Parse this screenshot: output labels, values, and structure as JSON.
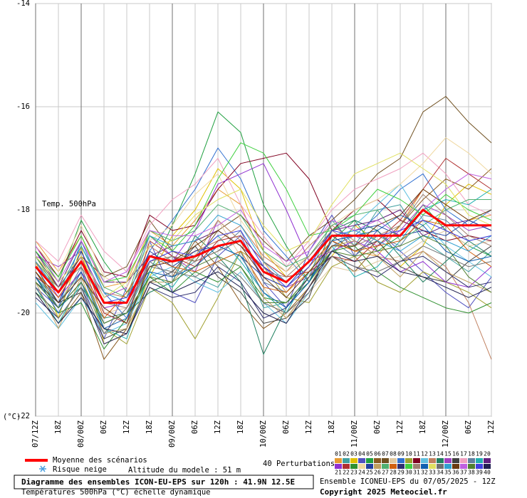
{
  "chart_data": {
    "type": "line",
    "title": "Diagramme des ensembles ICON-EU-EPS sur 120h : 41.9N 12.5E",
    "subtitle": "Températures 500hPa (°C) échelle dynamique",
    "run_label": "Ensemble ICONEU-EPS du 07/05/2025 - 12Z",
    "copyright": "Copyright 2025 Meteociel.fr",
    "variable_label": "Temp. 500hPa",
    "y_unit": "(°C)",
    "snow_label": "Risque neige",
    "altitude_label": "Altitude du modele : 51 m",
    "perturbations_label": "40 Perturbations",
    "categories": [
      "07/12Z",
      "18Z",
      "08/00Z",
      "06Z",
      "12Z",
      "18Z",
      "09/00Z",
      "06Z",
      "12Z",
      "18Z",
      "10/00Z",
      "06Z",
      "12Z",
      "18Z",
      "11/00Z",
      "06Z",
      "12Z",
      "18Z",
      "12/00Z",
      "06Z",
      "12Z"
    ],
    "ylim": [
      -22,
      -14
    ],
    "yticks": [
      -22,
      -20,
      -18,
      -16,
      -14
    ],
    "grid": true,
    "mean": {
      "name": "Moyenne des scénarios",
      "color": "#ff0000",
      "values": [
        -19.1,
        -19.6,
        -19.0,
        -19.8,
        -19.8,
        -18.9,
        -19.0,
        -18.9,
        -18.7,
        -18.6,
        -19.2,
        -19.4,
        -19.0,
        -18.5,
        -18.5,
        -18.5,
        -18.5,
        -18.0,
        -18.3,
        -18.3,
        -18.3
      ]
    },
    "series": [
      {
        "name": "01",
        "color": "#e89a30",
        "values": [
          -18.6,
          -19.2,
          -18.5,
          -19.5,
          -19.4,
          -18.4,
          -18.7,
          -18.2,
          -17.6,
          -17.9,
          -19.0,
          -19.6,
          -19.2,
          -18.6,
          -18.8,
          -18.9,
          -18.3,
          -17.6,
          -17.9,
          -18.2,
          -18.1
        ]
      },
      {
        "name": "02",
        "color": "#40a0a0",
        "values": [
          -19.3,
          -19.8,
          -19.2,
          -20.2,
          -20.0,
          -19.1,
          -18.9,
          -19.3,
          -19.5,
          -18.8,
          -19.9,
          -19.8,
          -19.3,
          -18.2,
          -18.7,
          -18.0,
          -17.9,
          -18.6,
          -18.9,
          -19.2,
          -18.8
        ]
      },
      {
        "name": "03",
        "color": "#e0c000",
        "values": [
          -19.0,
          -20.1,
          -18.7,
          -20.6,
          -20.4,
          -19.3,
          -18.5,
          -18.0,
          -17.2,
          -17.6,
          -18.8,
          -19.3,
          -19.2,
          -18.9,
          -18.3,
          -18.6,
          -19.1,
          -18.7,
          -17.9,
          -17.5,
          -17.7
        ]
      },
      {
        "name": "04",
        "color": "#5050c0",
        "values": [
          -19.5,
          -19.9,
          -19.4,
          -20.5,
          -19.5,
          -18.6,
          -19.6,
          -19.8,
          -18.9,
          -18.5,
          -19.4,
          -19.9,
          -18.8,
          -18.1,
          -18.9,
          -18.4,
          -18.8,
          -19.2,
          -19.6,
          -19.9,
          -19.3
        ]
      },
      {
        "name": "05",
        "color": "#20a040",
        "values": [
          -18.8,
          -19.4,
          -18.2,
          -19.0,
          -19.6,
          -19.2,
          -18.3,
          -17.3,
          -16.1,
          -16.5,
          -17.9,
          -18.7,
          -19.4,
          -18.6,
          -18.2,
          -18.8,
          -18.5,
          -17.9,
          -18.4,
          -18.7,
          -18.9
        ]
      },
      {
        "name": "06",
        "color": "#8a5a20",
        "values": [
          -19.6,
          -20.2,
          -19.6,
          -20.9,
          -20.3,
          -19.0,
          -19.3,
          -18.6,
          -19.1,
          -19.8,
          -20.3,
          -20.0,
          -19.5,
          -18.9,
          -19.2,
          -18.7,
          -18.3,
          -17.8,
          -17.4,
          -17.6,
          -17.2
        ]
      },
      {
        "name": "07",
        "color": "#705020",
        "values": [
          -18.9,
          -19.5,
          -18.9,
          -19.3,
          -19.1,
          -18.2,
          -18.8,
          -19.0,
          -18.4,
          -18.1,
          -18.6,
          -19.0,
          -18.5,
          -18.2,
          -17.8,
          -17.3,
          -17.0,
          -16.1,
          -15.8,
          -16.3,
          -16.7
        ]
      },
      {
        "name": "08",
        "color": "#e0c8a0",
        "values": [
          -19.2,
          -19.7,
          -19.3,
          -20.0,
          -19.9,
          -19.4,
          -19.2,
          -18.9,
          -18.2,
          -18.9,
          -19.5,
          -20.1,
          -19.6,
          -19.1,
          -19.2,
          -19.0,
          -18.9,
          -18.6,
          -18.4,
          -18.7,
          -18.6
        ]
      },
      {
        "name": "09",
        "color": "#3070d0",
        "values": [
          -19.4,
          -19.9,
          -18.6,
          -19.6,
          -20.1,
          -18.8,
          -18.2,
          -17.6,
          -16.8,
          -17.4,
          -18.4,
          -18.9,
          -19.4,
          -18.7,
          -18.5,
          -18.1,
          -17.6,
          -17.3,
          -18.0,
          -18.3,
          -18.0
        ]
      },
      {
        "name": "10",
        "color": "#a0a030",
        "values": [
          -19.0,
          -19.5,
          -19.1,
          -20.3,
          -20.6,
          -19.5,
          -19.8,
          -20.5,
          -19.7,
          -18.8,
          -19.1,
          -19.7,
          -19.8,
          -19.1,
          -18.9,
          -19.4,
          -19.6,
          -19.2,
          -19.4,
          -19.6,
          -19.9
        ]
      },
      {
        "name": "11",
        "color": "#800020",
        "values": [
          -18.7,
          -19.3,
          -18.4,
          -19.2,
          -19.3,
          -18.1,
          -18.4,
          -18.3,
          -17.6,
          -17.1,
          -17.0,
          -16.9,
          -17.4,
          -18.4,
          -18.0,
          -17.8,
          -18.2,
          -18.4,
          -18.6,
          -18.5,
          -18.6
        ]
      },
      {
        "name": "12",
        "color": "#60c0e0",
        "values": [
          -19.8,
          -20.3,
          -19.7,
          -20.4,
          -20.2,
          -19.3,
          -19.1,
          -19.4,
          -19.6,
          -19.2,
          -19.8,
          -20.2,
          -19.6,
          -18.8,
          -18.3,
          -17.9,
          -17.5,
          -18.2,
          -18.7,
          -19.0,
          -19.3
        ]
      },
      {
        "name": "13",
        "color": "#c08060",
        "values": [
          -19.1,
          -19.6,
          -19.0,
          -19.6,
          -19.7,
          -18.7,
          -19.0,
          -18.8,
          -18.6,
          -18.3,
          -18.9,
          -19.2,
          -18.7,
          -18.3,
          -18.6,
          -18.9,
          -19.0,
          -18.8,
          -19.1,
          -19.8,
          -20.9
        ]
      },
      {
        "name": "14",
        "color": "#208060",
        "values": [
          -19.3,
          -19.9,
          -19.5,
          -20.1,
          -20.0,
          -19.6,
          -19.4,
          -18.5,
          -18.9,
          -19.4,
          -20.8,
          -19.9,
          -19.4,
          -18.4,
          -18.2,
          -18.4,
          -18.9,
          -19.4,
          -19.0,
          -18.6,
          -18.9
        ]
      },
      {
        "name": "15",
        "color": "#a040c0",
        "values": [
          -18.9,
          -19.1,
          -18.8,
          -19.7,
          -19.5,
          -18.5,
          -18.9,
          -19.2,
          -18.2,
          -18.6,
          -19.3,
          -19.5,
          -19.3,
          -18.6,
          -18.5,
          -18.7,
          -18.4,
          -17.9,
          -18.1,
          -18.4,
          -18.3
        ]
      },
      {
        "name": "16",
        "color": "#404040",
        "values": [
          -19.4,
          -19.8,
          -19.6,
          -20.5,
          -20.3,
          -19.4,
          -19.2,
          -18.7,
          -19.3,
          -19.6,
          -20.2,
          -20.1,
          -19.7,
          -18.5,
          -18.8,
          -18.6,
          -19.1,
          -19.3,
          -19.4,
          -19.0,
          -18.7
        ]
      },
      {
        "name": "17",
        "color": "#f0a0c0",
        "values": [
          -18.6,
          -19.0,
          -18.1,
          -18.8,
          -19.2,
          -18.3,
          -17.8,
          -17.5,
          -17.0,
          -17.9,
          -18.5,
          -19.1,
          -18.6,
          -18.0,
          -17.6,
          -17.4,
          -17.2,
          -16.9,
          -17.3,
          -17.9,
          -18.1
        ]
      },
      {
        "name": "18",
        "color": "#6080a0",
        "values": [
          -19.2,
          -19.9,
          -19.1,
          -20.2,
          -20.0,
          -19.0,
          -19.3,
          -19.0,
          -18.8,
          -18.4,
          -19.4,
          -19.6,
          -19.1,
          -18.6,
          -18.9,
          -18.5,
          -18.7,
          -18.1,
          -18.2,
          -18.6,
          -18.5
        ]
      },
      {
        "name": "19",
        "color": "#20b0b0",
        "values": [
          -19.5,
          -20.2,
          -19.4,
          -20.3,
          -20.5,
          -19.2,
          -19.5,
          -18.9,
          -18.5,
          -19.0,
          -19.6,
          -20.0,
          -19.2,
          -18.7,
          -19.3,
          -19.1,
          -18.6,
          -18.0,
          -17.8,
          -17.9,
          -17.6
        ]
      },
      {
        "name": "20",
        "color": "#602080",
        "values": [
          -18.8,
          -19.5,
          -18.6,
          -19.4,
          -19.4,
          -18.9,
          -18.7,
          -18.6,
          -18.4,
          -18.7,
          -19.1,
          -19.4,
          -19.0,
          -18.4,
          -18.3,
          -18.2,
          -18.0,
          -18.5,
          -18.3,
          -18.2,
          -18.4
        ]
      },
      {
        "name": "21",
        "color": "#9030d0",
        "values": [
          -19.0,
          -19.7,
          -19.2,
          -19.9,
          -19.8,
          -19.1,
          -19.0,
          -18.4,
          -17.5,
          -17.3,
          -17.1,
          -18.0,
          -19.0,
          -18.8,
          -18.6,
          -18.8,
          -19.2,
          -19.0,
          -19.4,
          -19.5,
          -19.1
        ]
      },
      {
        "name": "22",
        "color": "#b03030",
        "values": [
          -19.3,
          -19.6,
          -18.9,
          -20.0,
          -20.2,
          -18.6,
          -18.9,
          -19.1,
          -18.6,
          -18.5,
          -19.0,
          -19.3,
          -19.2,
          -18.9,
          -19.0,
          -18.6,
          -18.2,
          -17.6,
          -17.0,
          -17.3,
          -17.6
        ]
      },
      {
        "name": "23",
        "color": "#309030",
        "values": [
          -19.6,
          -20.0,
          -19.8,
          -20.7,
          -20.1,
          -19.3,
          -19.6,
          -19.2,
          -19.4,
          -19.1,
          -19.7,
          -19.8,
          -19.4,
          -18.8,
          -18.7,
          -19.2,
          -19.5,
          -19.7,
          -19.9,
          -20.0,
          -19.8
        ]
      },
      {
        "name": "24",
        "color": "#f0d8a0",
        "values": [
          -18.7,
          -19.2,
          -18.3,
          -19.3,
          -19.5,
          -18.6,
          -18.3,
          -17.7,
          -17.3,
          -18.2,
          -18.8,
          -19.2,
          -18.9,
          -18.3,
          -18.0,
          -17.8,
          -17.5,
          -17.1,
          -16.6,
          -16.9,
          -17.3
        ]
      },
      {
        "name": "25",
        "color": "#2040a0",
        "values": [
          -19.1,
          -19.8,
          -18.8,
          -19.8,
          -19.8,
          -18.8,
          -19.1,
          -18.8,
          -18.7,
          -18.9,
          -19.3,
          -19.5,
          -19.0,
          -18.5,
          -18.4,
          -18.3,
          -18.5,
          -18.4,
          -18.5,
          -18.2,
          -18.4
        ]
      },
      {
        "name": "26",
        "color": "#c0a060",
        "values": [
          -19.4,
          -20.3,
          -19.3,
          -20.4,
          -20.3,
          -19.4,
          -19.4,
          -18.9,
          -18.2,
          -18.6,
          -19.7,
          -20.1,
          -19.5,
          -18.7,
          -18.6,
          -18.9,
          -19.3,
          -18.8,
          -19.2,
          -19.4,
          -19.6
        ]
      },
      {
        "name": "27",
        "color": "#50b070",
        "values": [
          -18.9,
          -19.6,
          -18.7,
          -19.5,
          -19.7,
          -18.4,
          -18.6,
          -18.4,
          -17.9,
          -18.1,
          -18.8,
          -19.1,
          -18.9,
          -18.3,
          -18.1,
          -18.0,
          -18.6,
          -18.3,
          -18.0,
          -17.8,
          -17.8
        ]
      },
      {
        "name": "28",
        "color": "#d06010",
        "values": [
          -19.2,
          -19.7,
          -19.0,
          -20.1,
          -19.6,
          -18.9,
          -19.1,
          -19.2,
          -19.0,
          -18.8,
          -19.5,
          -19.6,
          -19.1,
          -18.6,
          -18.8,
          -18.7,
          -18.6,
          -18.2,
          -18.3,
          -18.8,
          -19.1
        ]
      },
      {
        "name": "29",
        "color": "#303070",
        "values": [
          -19.7,
          -20.1,
          -19.5,
          -20.6,
          -20.4,
          -19.5,
          -19.7,
          -19.6,
          -19.1,
          -19.4,
          -20.1,
          -19.9,
          -19.3,
          -18.9,
          -19.1,
          -19.3,
          -19.0,
          -18.9,
          -19.2,
          -19.5,
          -19.4
        ]
      },
      {
        "name": "30",
        "color": "#40d040",
        "values": [
          -18.8,
          -19.3,
          -18.5,
          -19.4,
          -19.3,
          -18.5,
          -18.8,
          -18.3,
          -17.4,
          -16.7,
          -16.9,
          -17.6,
          -18.5,
          -18.4,
          -18.1,
          -17.6,
          -17.8,
          -18.1,
          -17.7,
          -18.0,
          -18.2
        ]
      },
      {
        "name": "31",
        "color": "#a08070",
        "values": [
          -19.1,
          -19.5,
          -19.1,
          -19.8,
          -19.9,
          -19.0,
          -18.9,
          -19.0,
          -18.8,
          -18.6,
          -19.2,
          -19.3,
          -18.9,
          -18.4,
          -18.7,
          -18.5,
          -18.3,
          -17.7,
          -18.1,
          -18.5,
          -18.7
        ]
      },
      {
        "name": "32",
        "color": "#1060b0",
        "values": [
          -19.3,
          -20.0,
          -19.2,
          -20.3,
          -20.1,
          -19.2,
          -19.3,
          -19.1,
          -18.7,
          -18.9,
          -19.6,
          -19.9,
          -19.4,
          -18.6,
          -18.5,
          -18.4,
          -18.1,
          -18.3,
          -18.8,
          -19.0,
          -18.9
        ]
      },
      {
        "name": "33",
        "color": "#e0e060",
        "values": [
          -18.9,
          -19.4,
          -18.9,
          -19.7,
          -19.4,
          -18.7,
          -18.6,
          -18.1,
          -17.8,
          -17.6,
          -18.3,
          -18.8,
          -18.6,
          -17.9,
          -17.3,
          -17.1,
          -16.9,
          -17.2,
          -17.5,
          -18.1,
          -18.3
        ]
      },
      {
        "name": "34",
        "color": "#707070",
        "values": [
          -19.5,
          -20.1,
          -19.5,
          -20.4,
          -19.9,
          -19.1,
          -19.2,
          -19.3,
          -19.0,
          -19.3,
          -19.8,
          -20.0,
          -19.6,
          -18.9,
          -19.1,
          -19.2,
          -19.0,
          -18.7,
          -18.9,
          -19.1,
          -19.0
        ]
      },
      {
        "name": "35",
        "color": "#30a0d0",
        "values": [
          -19.0,
          -19.6,
          -18.7,
          -19.6,
          -19.8,
          -18.5,
          -18.7,
          -18.6,
          -18.1,
          -18.3,
          -19.0,
          -19.4,
          -19.0,
          -18.5,
          -18.4,
          -18.6,
          -18.8,
          -18.5,
          -18.6,
          -18.8,
          -18.5
        ]
      },
      {
        "name": "36",
        "color": "#6a3a10",
        "values": [
          -19.2,
          -19.8,
          -19.3,
          -19.9,
          -20.2,
          -19.1,
          -19.0,
          -18.7,
          -18.4,
          -18.7,
          -19.3,
          -19.7,
          -19.2,
          -18.7,
          -18.7,
          -18.3,
          -18.1,
          -17.6,
          -17.9,
          -18.2,
          -18.0
        ]
      },
      {
        "name": "37",
        "color": "#c060e0",
        "values": [
          -18.7,
          -19.4,
          -18.6,
          -19.4,
          -19.2,
          -18.4,
          -18.5,
          -18.5,
          -18.3,
          -18.0,
          -18.7,
          -19.0,
          -18.8,
          -18.2,
          -18.4,
          -18.2,
          -18.5,
          -18.0,
          -17.6,
          -17.3,
          -17.4
        ]
      },
      {
        "name": "38",
        "color": "#508030",
        "values": [
          -19.4,
          -19.9,
          -19.4,
          -20.2,
          -20.0,
          -19.3,
          -19.4,
          -19.1,
          -18.9,
          -19.1,
          -19.8,
          -19.8,
          -19.3,
          -18.8,
          -18.9,
          -18.8,
          -18.7,
          -18.5,
          -18.7,
          -19.3,
          -19.6
        ]
      },
      {
        "name": "39",
        "color": "#4040e0",
        "values": [
          -19.1,
          -19.6,
          -19.0,
          -19.8,
          -19.7,
          -19.0,
          -18.8,
          -18.9,
          -18.5,
          -18.4,
          -19.1,
          -19.5,
          -19.1,
          -18.4,
          -18.5,
          -18.5,
          -18.4,
          -18.2,
          -18.4,
          -18.6,
          -18.5
        ]
      },
      {
        "name": "40",
        "color": "#202050",
        "values": [
          -19.6,
          -20.2,
          -19.7,
          -20.3,
          -20.4,
          -19.4,
          -19.6,
          -19.4,
          -19.2,
          -19.5,
          -20.0,
          -20.2,
          -19.5,
          -18.8,
          -19.0,
          -18.9,
          -19.2,
          -19.3,
          -19.5,
          -19.7,
          -19.5
        ]
      }
    ]
  }
}
